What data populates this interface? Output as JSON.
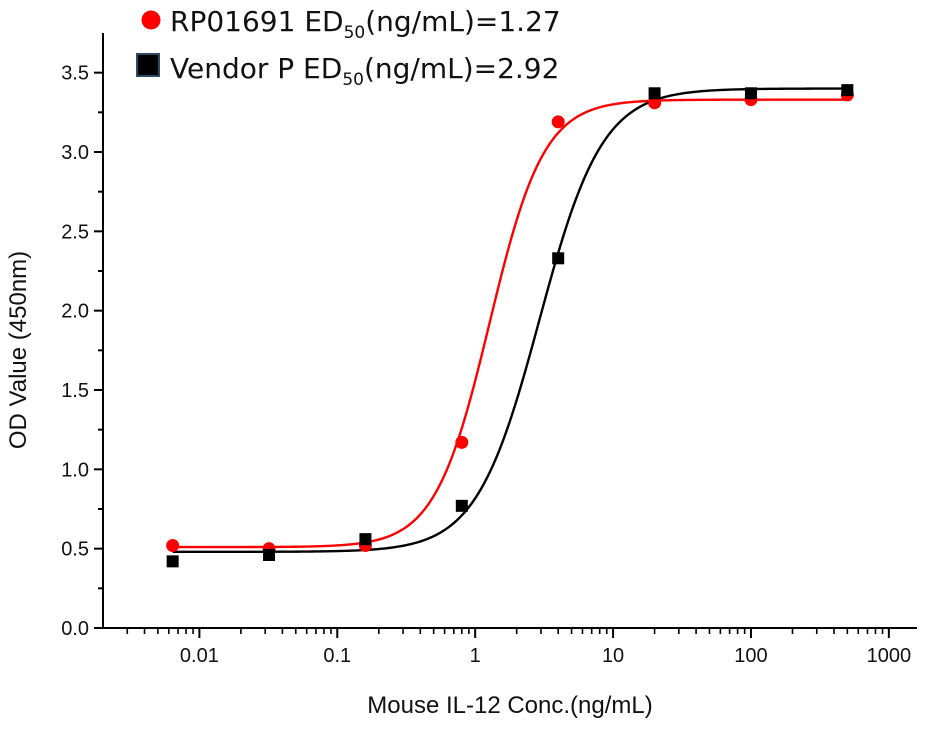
{
  "chart_data": {
    "type": "scatter",
    "xlabel": "Mouse IL-12 Conc.(ng/mL)",
    "ylabel": "OD Value (450nm)",
    "xscale": "log",
    "xlim": [
      0.002,
      1600
    ],
    "ylim": [
      0.0,
      3.75
    ],
    "x_ticks": [
      0.01,
      0.1,
      1,
      10,
      100,
      1000
    ],
    "x_tick_labels": [
      "0.01",
      "0.1",
      "1",
      "10",
      "100",
      "1000"
    ],
    "y_ticks": [
      0.0,
      0.5,
      1.0,
      1.5,
      2.0,
      2.5,
      3.0,
      3.5
    ],
    "y_tick_labels": [
      "0.0",
      "0.5",
      "1.0",
      "1.5",
      "2.0",
      "2.5",
      "3.0",
      "3.5"
    ],
    "grid": false,
    "legend_position": "top-left",
    "series": [
      {
        "name": "RP01691",
        "legend_prefix": "RP01691 ED",
        "legend_sub": "50",
        "legend_suffix": "(ng/mL)=1.27",
        "marker": "circle",
        "color": "#ff0000",
        "x": [
          0.0064,
          0.032,
          0.16,
          0.8,
          4,
          20,
          100,
          500
        ],
        "y": [
          0.52,
          0.5,
          0.52,
          1.17,
          3.19,
          3.31,
          3.33,
          3.36
        ],
        "fit": {
          "bottom": 0.51,
          "top": 3.33,
          "ec50": 1.27,
          "hill": 2.2
        }
      },
      {
        "name": "Vendor P",
        "legend_prefix": "Vendor P ED",
        "legend_sub": "50",
        "legend_suffix": "(ng/mL)=2.92",
        "marker": "square",
        "color": "#000000",
        "x": [
          0.0064,
          0.032,
          0.16,
          0.8,
          4,
          20,
          100,
          500
        ],
        "y": [
          0.42,
          0.46,
          0.56,
          0.77,
          2.33,
          3.37,
          3.37,
          3.39
        ],
        "fit": {
          "bottom": 0.48,
          "top": 3.4,
          "ec50": 2.92,
          "hill": 1.9
        }
      }
    ]
  }
}
